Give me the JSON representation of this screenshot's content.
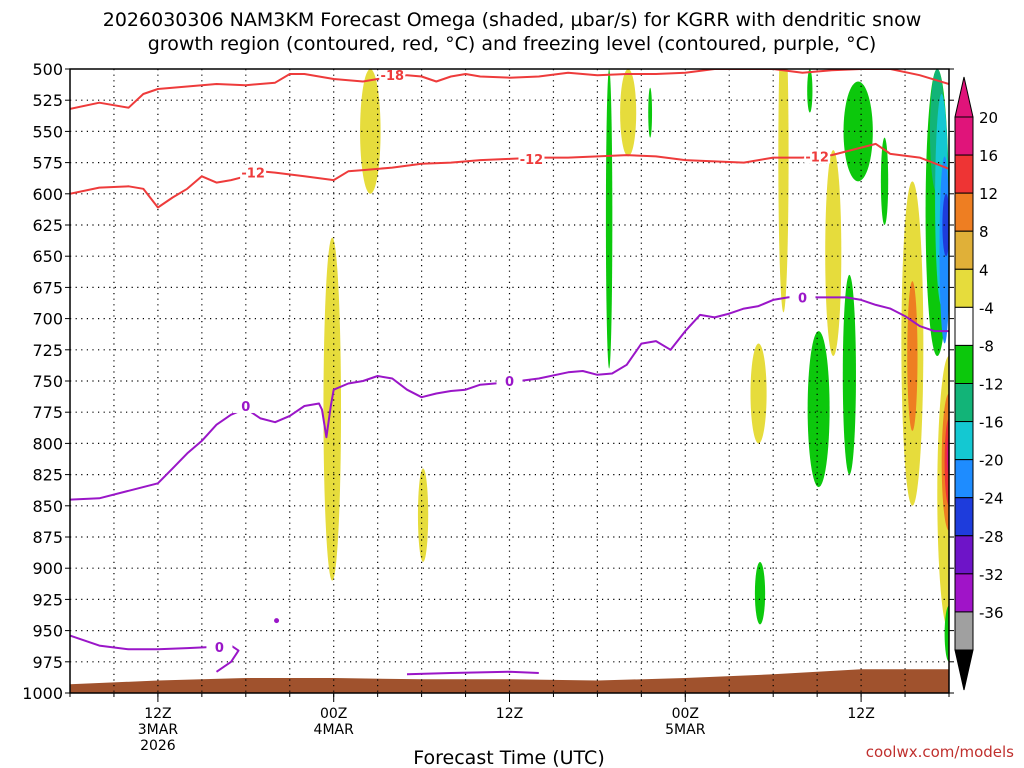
{
  "title_line1": "2026030306 NAM3KM Forecast Omega (shaded, µbar/s) for KGRR with dendritic snow",
  "title_line2": "growth region (contoured, red, °C) and freezing level (contoured, purple, °C)",
  "credit": "coolwx.com/models",
  "chart_data": {
    "type": "time-height cross section",
    "xlabel": "Forecast Time (UTC)",
    "x_ticks": [
      {
        "hour": 6,
        "lines": [
          "12Z",
          "3MAR",
          "2026"
        ]
      },
      {
        "hour": 18,
        "lines": [
          "00Z",
          "4MAR"
        ]
      },
      {
        "hour": 30,
        "lines": [
          "12Z"
        ]
      },
      {
        "hour": 42,
        "lines": [
          "00Z",
          "5MAR"
        ]
      },
      {
        "hour": 54,
        "lines": [
          "12Z"
        ]
      }
    ],
    "x_range_hours": [
      0,
      60
    ],
    "y_unit": "hPa",
    "y_ticks": [
      500,
      525,
      550,
      575,
      600,
      625,
      650,
      675,
      700,
      725,
      750,
      775,
      800,
      825,
      850,
      875,
      900,
      925,
      950,
      975,
      1000
    ],
    "y_range": [
      500,
      1000
    ],
    "colorbar_labels": [
      20,
      16,
      12,
      8,
      4,
      -4,
      -8,
      -12,
      -16,
      -20,
      -24,
      -28,
      -32,
      -36
    ],
    "colorbar_colors": [
      "#e0147a",
      "#ee3434",
      "#ee7e22",
      "#e0b038",
      "#e6dc3c",
      "#ffffff",
      "#0cc80c",
      "#12b478",
      "#14c8d2",
      "#1e8cff",
      "#1e3cdc",
      "#6e14c8",
      "#a014c8",
      "#a0a0a0"
    ],
    "contours": {
      "minus18": {
        "label": "-18",
        "color": "#ee3b3b",
        "points": [
          [
            0,
            532
          ],
          [
            2,
            527
          ],
          [
            4,
            531
          ],
          [
            5,
            520
          ],
          [
            6,
            516
          ],
          [
            8,
            514
          ],
          [
            10,
            512
          ],
          [
            12,
            513
          ],
          [
            14,
            511
          ],
          [
            15,
            504
          ],
          [
            16,
            504
          ],
          [
            18,
            508
          ],
          [
            20,
            510
          ],
          [
            21,
            508
          ],
          [
            22,
            507
          ],
          [
            23,
            505
          ],
          [
            24,
            506
          ],
          [
            25,
            510
          ],
          [
            26,
            506
          ],
          [
            27,
            504
          ],
          [
            28,
            506
          ],
          [
            30,
            507
          ],
          [
            32,
            506
          ],
          [
            34,
            503
          ],
          [
            36,
            505
          ],
          [
            38,
            504
          ],
          [
            40,
            504
          ],
          [
            42,
            503
          ],
          [
            44,
            500
          ],
          [
            46,
            500
          ],
          [
            48,
            500
          ],
          [
            50,
            503
          ],
          [
            52,
            501
          ],
          [
            54,
            500
          ],
          [
            56,
            500
          ],
          [
            58,
            505
          ],
          [
            60,
            512
          ]
        ],
        "labels": [
          [
            22,
            505
          ]
        ]
      },
      "minus12": {
        "label": "-12",
        "color": "#ee3b3b",
        "points": [
          [
            0,
            600
          ],
          [
            2,
            595
          ],
          [
            4,
            594
          ],
          [
            5,
            596
          ],
          [
            6,
            611
          ],
          [
            7,
            603
          ],
          [
            8,
            596
          ],
          [
            9,
            586
          ],
          [
            10,
            591
          ],
          [
            11,
            589
          ],
          [
            12,
            586
          ],
          [
            13,
            582
          ],
          [
            14,
            583
          ],
          [
            16,
            586
          ],
          [
            18,
            589
          ],
          [
            19,
            582
          ],
          [
            20,
            581
          ],
          [
            22,
            579
          ],
          [
            24,
            576
          ],
          [
            26,
            575
          ],
          [
            28,
            573
          ],
          [
            30,
            572
          ],
          [
            32,
            571
          ],
          [
            34,
            571
          ],
          [
            36,
            570
          ],
          [
            38,
            569
          ],
          [
            40,
            570
          ],
          [
            42,
            573
          ],
          [
            44,
            574
          ],
          [
            46,
            575
          ],
          [
            47,
            573
          ],
          [
            48,
            571
          ],
          [
            50,
            571
          ],
          [
            52,
            569
          ],
          [
            54,
            563
          ],
          [
            55,
            560
          ],
          [
            56,
            568
          ],
          [
            58,
            571
          ],
          [
            60,
            580
          ]
        ],
        "labels": [
          [
            12.5,
            583
          ],
          [
            31.5,
            572
          ],
          [
            51,
            570
          ]
        ]
      },
      "zero_upper": {
        "label": "0",
        "color": "#9a16c8",
        "points": [
          [
            0,
            845
          ],
          [
            2,
            844
          ],
          [
            4,
            838
          ],
          [
            6,
            832
          ],
          [
            7,
            820
          ],
          [
            8,
            808
          ],
          [
            9,
            798
          ],
          [
            10,
            785
          ],
          [
            11,
            777
          ],
          [
            12,
            772
          ],
          [
            13,
            780
          ],
          [
            14,
            783
          ],
          [
            15,
            778
          ],
          [
            16,
            770
          ],
          [
            17,
            768
          ],
          [
            17.2,
            773
          ],
          [
            17.5,
            795
          ],
          [
            17.8,
            770
          ],
          [
            18,
            757
          ],
          [
            19,
            752
          ],
          [
            20,
            750
          ],
          [
            21,
            746
          ],
          [
            22,
            748
          ],
          [
            23,
            757
          ],
          [
            24,
            763
          ],
          [
            25,
            760
          ],
          [
            26,
            758
          ],
          [
            27,
            757
          ],
          [
            28,
            753
          ],
          [
            30,
            751
          ],
          [
            32,
            748
          ],
          [
            34,
            743
          ],
          [
            35,
            742
          ],
          [
            36,
            745
          ],
          [
            37,
            744
          ],
          [
            38,
            737
          ],
          [
            39,
            720
          ],
          [
            40,
            718
          ],
          [
            41,
            725
          ],
          [
            42,
            710
          ],
          [
            43,
            697
          ],
          [
            44,
            699
          ],
          [
            45,
            696
          ],
          [
            46,
            692
          ],
          [
            47,
            690
          ],
          [
            48,
            685
          ],
          [
            49,
            683
          ],
          [
            50,
            682
          ],
          [
            51,
            683
          ],
          [
            52,
            683
          ],
          [
            53,
            683
          ],
          [
            54,
            685
          ],
          [
            55,
            689
          ],
          [
            56,
            692
          ],
          [
            57,
            698
          ],
          [
            58,
            706
          ],
          [
            59,
            710
          ],
          [
            60,
            710
          ]
        ],
        "labels": [
          [
            30,
            750
          ],
          [
            12,
            770
          ],
          [
            50,
            683
          ]
        ]
      },
      "zero_lower": {
        "label": "0",
        "color": "#9a16c8",
        "points": [
          [
            0,
            954
          ],
          [
            2,
            962
          ],
          [
            4,
            965
          ],
          [
            6,
            965
          ],
          [
            8,
            964
          ],
          [
            10,
            963
          ],
          [
            11,
            962
          ],
          [
            11.5,
            966
          ],
          [
            11,
            975
          ],
          [
            10,
            983
          ]
        ],
        "labels": [
          [
            10.2,
            963
          ]
        ]
      },
      "zero_surface": {
        "label": "",
        "color": "#9a16c8",
        "points": [
          [
            23,
            985
          ],
          [
            26,
            984
          ],
          [
            30,
            983
          ],
          [
            32,
            984
          ]
        ],
        "labels": []
      },
      "zero_dot": {
        "label": "",
        "color": "#9a16c8",
        "points": [
          [
            14.1,
            942
          ]
        ],
        "labels": []
      }
    },
    "ground_top_hpa": [
      [
        0,
        993
      ],
      [
        6,
        990
      ],
      [
        12,
        988
      ],
      [
        18,
        988
      ],
      [
        24,
        989
      ],
      [
        30,
        989
      ],
      [
        36,
        990
      ],
      [
        42,
        988
      ],
      [
        48,
        985
      ],
      [
        54,
        981
      ],
      [
        60,
        981
      ]
    ],
    "shaded_regions": [
      {
        "color": "#e6dc3c",
        "center": [
          20.5,
          550
        ],
        "rx": 0.7,
        "top": 500,
        "bottom": 600
      },
      {
        "color": "#e6dc3c",
        "center": [
          17.9,
          770
        ],
        "rx": 0.6,
        "top": 635,
        "bottom": 910
      },
      {
        "color": "#e6dc3c",
        "center": [
          24.1,
          858
        ],
        "rx": 0.35,
        "top": 820,
        "bottom": 895
      },
      {
        "color": "#e6dc3c",
        "center": [
          38.1,
          535
        ],
        "rx": 0.55,
        "top": 500,
        "bottom": 570
      },
      {
        "color": "#0cc80c",
        "center": [
          36.8,
          625
        ],
        "rx": 0.22,
        "top": 500,
        "bottom": 740
      },
      {
        "color": "#0cc80c",
        "center": [
          39.6,
          535
        ],
        "rx": 0.13,
        "top": 515,
        "bottom": 555
      },
      {
        "color": "#e6dc3c",
        "center": [
          48.7,
          615
        ],
        "rx": 0.35,
        "top": 445,
        "bottom": 695
      },
      {
        "color": "#0cc80c",
        "center": [
          50.5,
          515
        ],
        "rx": 0.18,
        "top": 500,
        "bottom": 535
      },
      {
        "color": "#e6dc3c",
        "center": [
          52.1,
          650
        ],
        "rx": 0.55,
        "top": 565,
        "bottom": 730
      },
      {
        "color": "#e6dc3c",
        "center": [
          47.0,
          775
        ],
        "rx": 0.55,
        "top": 720,
        "bottom": 800
      },
      {
        "color": "#0cc80c",
        "center": [
          51.1,
          780
        ],
        "rx": 0.75,
        "top": 710,
        "bottom": 835
      },
      {
        "color": "#0cc80c",
        "center": [
          53.2,
          740
        ],
        "rx": 0.45,
        "top": 665,
        "bottom": 825
      },
      {
        "color": "#0cc80c",
        "center": [
          53.8,
          545
        ],
        "rx": 1.0,
        "top": 510,
        "bottom": 590
      },
      {
        "color": "#0cc80c",
        "center": [
          55.6,
          590
        ],
        "rx": 0.25,
        "top": 555,
        "bottom": 625
      },
      {
        "color": "#0cc80c",
        "center": [
          47.1,
          918
        ],
        "rx": 0.35,
        "top": 895,
        "bottom": 945
      },
      {
        "color": "#e6dc3c",
        "center": [
          57.5,
          720
        ],
        "rx": 0.75,
        "top": 590,
        "bottom": 850
      },
      {
        "color": "#ee7e22",
        "center": [
          57.5,
          720
        ],
        "rx": 0.35,
        "top": 670,
        "bottom": 790
      },
      {
        "color": "#0cc80c",
        "center": [
          59.2,
          600
        ],
        "rx": 0.8,
        "top": 500,
        "bottom": 730
      },
      {
        "color": "#12b478",
        "center": [
          59.2,
          540
        ],
        "rx": 0.5,
        "top": 500,
        "bottom": 600
      },
      {
        "color": "#14c8d2",
        "center": [
          59.5,
          590
        ],
        "rx": 0.45,
        "top": 520,
        "bottom": 690
      },
      {
        "color": "#1e8cff",
        "center": [
          59.7,
          640
        ],
        "rx": 0.35,
        "top": 570,
        "bottom": 720
      },
      {
        "color": "#1e3cdc",
        "center": [
          59.8,
          620
        ],
        "rx": 0.25,
        "top": 600,
        "bottom": 650
      },
      {
        "color": "#e6dc3c",
        "center": [
          60,
          835
        ],
        "rx": 0.8,
        "top": 730,
        "bottom": 950
      },
      {
        "color": "#ee7e22",
        "center": [
          60,
          810
        ],
        "rx": 0.5,
        "top": 760,
        "bottom": 870
      },
      {
        "color": "#ee3434",
        "center": [
          60,
          810
        ],
        "rx": 0.3,
        "top": 780,
        "bottom": 850
      },
      {
        "color": "#e0147a",
        "center": [
          60,
          810
        ],
        "rx": 0.15,
        "top": 795,
        "bottom": 825
      },
      {
        "color": "#0cc80c",
        "center": [
          60,
          948
        ],
        "rx": 0.3,
        "top": 930,
        "bottom": 975
      }
    ]
  }
}
